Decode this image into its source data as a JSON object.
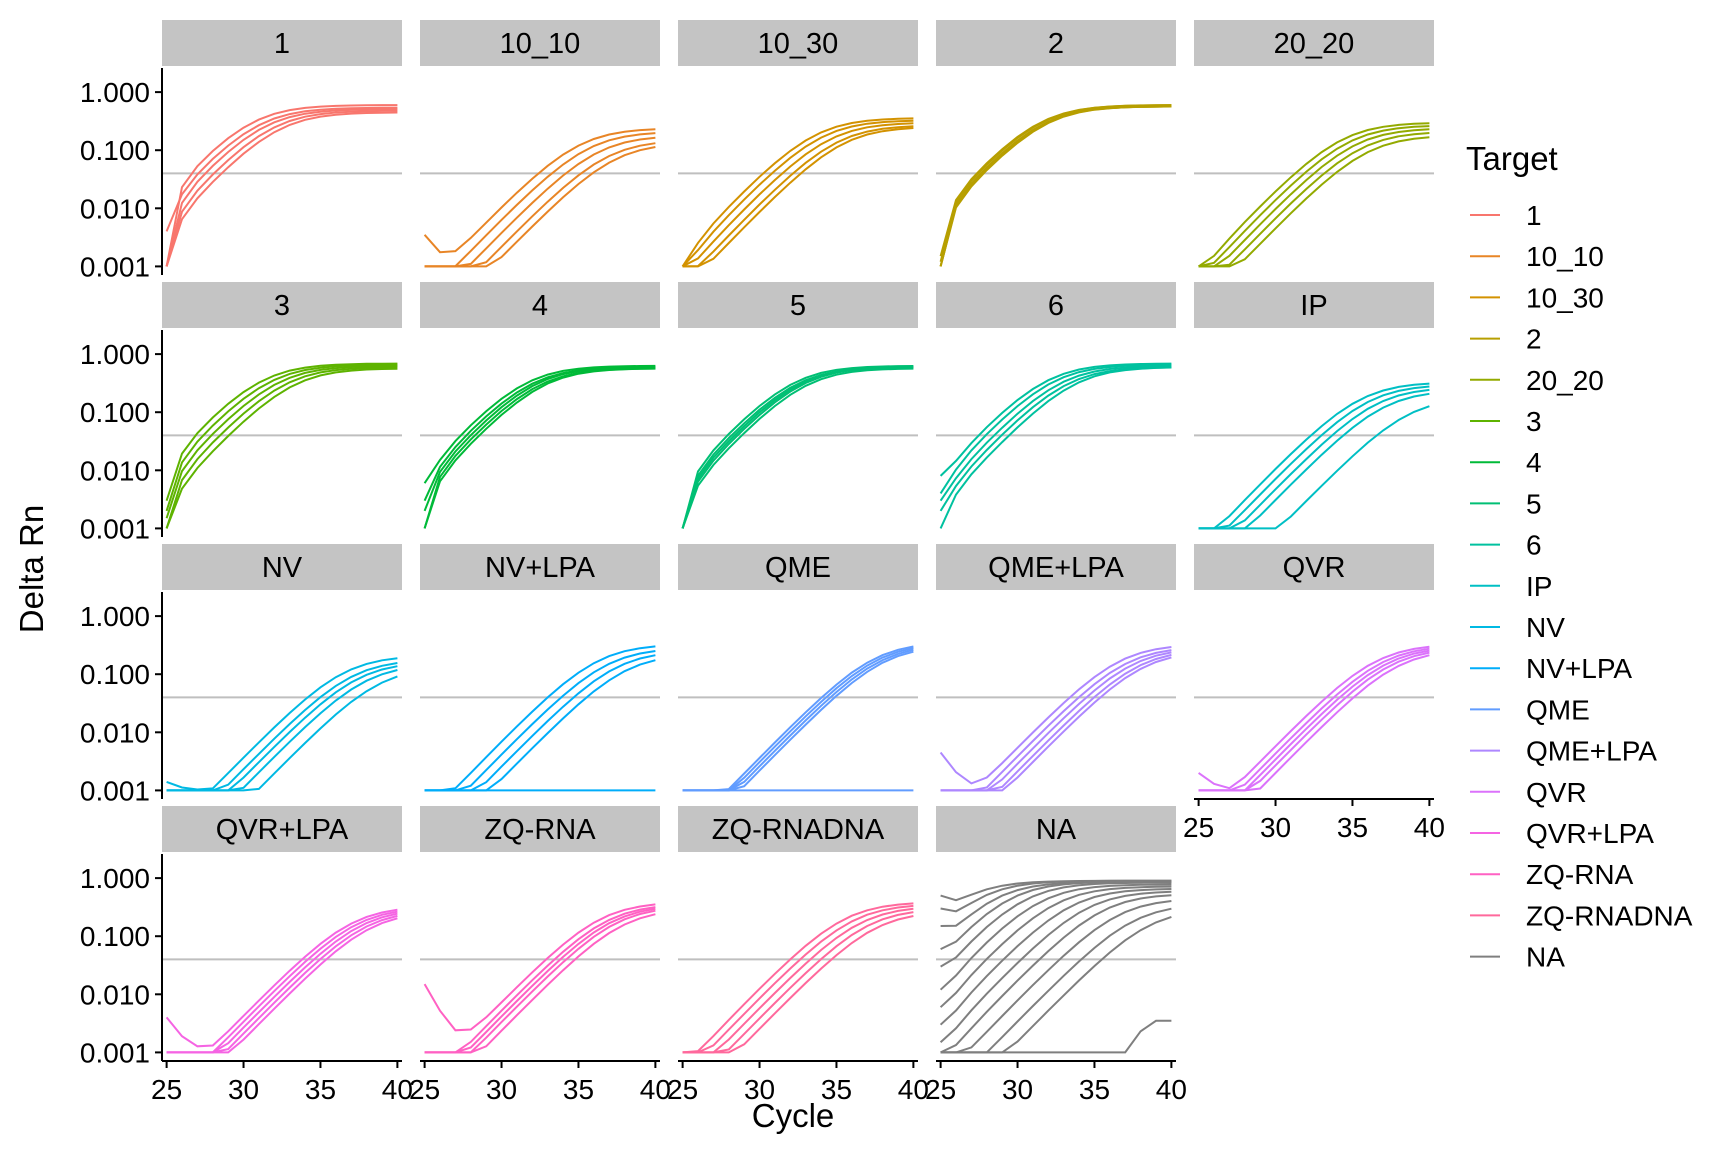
{
  "chart_data": {
    "type": "line",
    "xlabel": "Cycle",
    "ylabel": "Delta Rn",
    "x_ticks": [
      25,
      30,
      35,
      40
    ],
    "x_tick_labels": [
      "25",
      "30",
      "35",
      "40"
    ],
    "y_ticks": [
      0.001,
      0.01,
      0.1,
      1.0
    ],
    "y_tick_labels": [
      "0.001",
      "0.010",
      "0.100",
      "1.000"
    ],
    "y_scale": "log10",
    "xlim": [
      24.7,
      40.3
    ],
    "ylim": [
      0.00077,
      2.6
    ],
    "threshold": 0.04,
    "threshold_color": "#bfbfbf",
    "strip_color": "#c4c4c4",
    "grid": false,
    "legend_title": "Target",
    "legend_position": "right",
    "panels": [
      {
        "name": "1",
        "color": "#F8766D",
        "curves": [
          {
            "midpoint": 30.6,
            "plateau": 2.0,
            "y25": 0.001
          },
          {
            "midpoint": 31.0,
            "plateau": 1.8,
            "y25": 0.004
          },
          {
            "midpoint": 31.4,
            "plateau": 1.7,
            "y25": 0.001
          },
          {
            "midpoint": 31.9,
            "plateau": 1.6,
            "y25": 0.001
          },
          {
            "midpoint": 32.3,
            "plateau": 1.5,
            "y25": 0.001
          }
        ]
      },
      {
        "name": "10_10",
        "color": "#E88526",
        "curves": [
          {
            "midpoint": 35.0,
            "plateau": 0.8,
            "y25": 0.0035
          },
          {
            "midpoint": 35.6,
            "plateau": 0.7,
            "y25": 0.001
          },
          {
            "midpoint": 36.2,
            "plateau": 0.6,
            "y25": 0.001
          },
          {
            "midpoint": 36.8,
            "plateau": 0.5,
            "y25": 0.001
          },
          {
            "midpoint": 37.3,
            "plateau": 0.45,
            "y25": 0.001
          }
        ]
      },
      {
        "name": "10_30",
        "color": "#D39200",
        "curves": [
          {
            "midpoint": 33.6,
            "plateau": 1.2,
            "y25": 0.001
          },
          {
            "midpoint": 34.0,
            "plateau": 1.1,
            "y25": 0.001
          },
          {
            "midpoint": 34.5,
            "plateau": 1.0,
            "y25": 0.001
          },
          {
            "midpoint": 35.0,
            "plateau": 0.9,
            "y25": 0.001
          },
          {
            "midpoint": 35.4,
            "plateau": 0.85,
            "y25": 0.001
          }
        ]
      },
      {
        "name": "2",
        "color": "#B79F00",
        "curves": [
          {
            "midpoint": 31.5,
            "plateau": 2.0,
            "y25": 0.0015
          },
          {
            "midpoint": 31.6,
            "plateau": 2.0,
            "y25": 0.0012
          },
          {
            "midpoint": 31.7,
            "plateau": 1.9,
            "y25": 0.001
          },
          {
            "midpoint": 31.8,
            "plateau": 1.9,
            "y25": 0.001
          },
          {
            "midpoint": 31.9,
            "plateau": 1.9,
            "y25": 0.001
          }
        ]
      },
      {
        "name": "20_20",
        "color": "#93AA00",
        "curves": [
          {
            "midpoint": 34.3,
            "plateau": 1.0,
            "y25": 0.001
          },
          {
            "midpoint": 34.7,
            "plateau": 0.9,
            "y25": 0.001
          },
          {
            "midpoint": 35.1,
            "plateau": 0.8,
            "y25": 0.001
          },
          {
            "midpoint": 35.5,
            "plateau": 0.7,
            "y25": 0.001
          },
          {
            "midpoint": 35.9,
            "plateau": 0.6,
            "y25": 0.001
          }
        ]
      },
      {
        "name": "3",
        "color": "#5EB300",
        "curves": [
          {
            "midpoint": 31.2,
            "plateau": 2.3,
            "y25": 0.003
          },
          {
            "midpoint": 31.7,
            "plateau": 2.2,
            "y25": 0.002
          },
          {
            "midpoint": 32.2,
            "plateau": 2.1,
            "y25": 0.0015
          },
          {
            "midpoint": 32.7,
            "plateau": 2.0,
            "y25": 0.001
          },
          {
            "midpoint": 33.2,
            "plateau": 1.9,
            "y25": 0.001
          }
        ]
      },
      {
        "name": "4",
        "color": "#00BA38",
        "curves": [
          {
            "midpoint": 31.6,
            "plateau": 2.1,
            "y25": 0.006
          },
          {
            "midpoint": 31.9,
            "plateau": 2.0,
            "y25": 0.003
          },
          {
            "midpoint": 32.2,
            "plateau": 2.0,
            "y25": 0.002
          },
          {
            "midpoint": 32.4,
            "plateau": 1.9,
            "y25": 0.001
          },
          {
            "midpoint": 32.7,
            "plateau": 1.9,
            "y25": 0.001
          }
        ]
      },
      {
        "name": "5",
        "color": "#00BF74",
        "curves": [
          {
            "midpoint": 32.2,
            "plateau": 2.1,
            "y25": 0.001
          },
          {
            "midpoint": 32.4,
            "plateau": 2.0,
            "y25": 0.001
          },
          {
            "midpoint": 32.6,
            "plateau": 2.0,
            "y25": 0.001
          },
          {
            "midpoint": 32.8,
            "plateau": 2.0,
            "y25": 0.001
          },
          {
            "midpoint": 33.0,
            "plateau": 1.9,
            "y25": 0.001
          }
        ]
      },
      {
        "name": "6",
        "color": "#00C19F",
        "curves": [
          {
            "midpoint": 31.9,
            "plateau": 2.3,
            "y25": 0.008
          },
          {
            "midpoint": 32.3,
            "plateau": 2.2,
            "y25": 0.004
          },
          {
            "midpoint": 32.8,
            "plateau": 2.1,
            "y25": 0.003
          },
          {
            "midpoint": 33.2,
            "plateau": 2.0,
            "y25": 0.002
          },
          {
            "midpoint": 33.7,
            "plateau": 2.0,
            "y25": 0.001
          }
        ]
      },
      {
        "name": "IP",
        "color": "#00BFC4",
        "curves": [
          {
            "midpoint": 35.5,
            "plateau": 1.1,
            "y25": 0.001
          },
          {
            "midpoint": 36.0,
            "plateau": 1.0,
            "y25": 0.001
          },
          {
            "midpoint": 36.5,
            "plateau": 0.9,
            "y25": 0.001
          },
          {
            "midpoint": 37.0,
            "plateau": 0.8,
            "y25": 0.001
          },
          {
            "midpoint": 38.6,
            "plateau": 0.6,
            "y25": 0.001
          }
        ]
      },
      {
        "name": "NV",
        "color": "#00B9E3",
        "curves": [
          {
            "midpoint": 36.5,
            "plateau": 0.7,
            "y25": 0.0014
          },
          {
            "midpoint": 37.0,
            "plateau": 0.6,
            "y25": 0.001
          },
          {
            "midpoint": 37.4,
            "plateau": 0.55,
            "y25": 0.001
          },
          {
            "midpoint": 37.9,
            "plateau": 0.5,
            "y25": 0.001
          },
          {
            "midpoint": 38.8,
            "plateau": 0.45,
            "y25": 0.001
          }
        ]
      },
      {
        "name": "NV+LPA",
        "color": "#00ADFA",
        "curves": [
          {
            "midpoint": 36.2,
            "plateau": 1.1,
            "y25": 0.001
          },
          {
            "midpoint": 36.8,
            "plateau": 0.95,
            "y25": 0.001
          },
          {
            "midpoint": 37.4,
            "plateau": 0.85,
            "y25": 0.001
          },
          {
            "midpoint": 38.0,
            "plateau": 0.75,
            "y25": 0.001
          },
          {
            "midpoint": 40,
            "plateau": 0.0012,
            "y25": 0.001,
            "flat": true
          }
        ]
      },
      {
        "name": "QME",
        "color": "#619CFF",
        "curves": [
          {
            "midpoint": 37.4,
            "plateau": 1.2,
            "y25": 0.001
          },
          {
            "midpoint": 37.6,
            "plateau": 1.15,
            "y25": 0.001
          },
          {
            "midpoint": 37.8,
            "plateau": 1.1,
            "y25": 0.001
          },
          {
            "midpoint": 38.0,
            "plateau": 1.05,
            "y25": 0.001
          },
          {
            "midpoint": 40,
            "plateau": 0.001,
            "y25": 0.001,
            "flat": true
          }
        ]
      },
      {
        "name": "QME+LPA",
        "color": "#AE87FF",
        "curves": [
          {
            "midpoint": 36.6,
            "plateau": 1.1,
            "y25": 0.0045
          },
          {
            "midpoint": 37.0,
            "plateau": 1.0,
            "y25": 0.001
          },
          {
            "midpoint": 37.4,
            "plateau": 0.95,
            "y25": 0.001
          },
          {
            "midpoint": 37.8,
            "plateau": 0.9,
            "y25": 0.001
          },
          {
            "midpoint": 38.1,
            "plateau": 0.85,
            "y25": 0.001
          }
        ]
      },
      {
        "name": "QVR",
        "color": "#DB72FB",
        "curves": [
          {
            "midpoint": 36.5,
            "plateau": 1.1,
            "y25": 0.002
          },
          {
            "midpoint": 36.9,
            "plateau": 1.05,
            "y25": 0.001
          },
          {
            "midpoint": 37.2,
            "plateau": 1.0,
            "y25": 0.001
          },
          {
            "midpoint": 37.5,
            "plateau": 0.95,
            "y25": 0.001
          },
          {
            "midpoint": 37.9,
            "plateau": 0.9,
            "y25": 0.001
          }
        ]
      },
      {
        "name": "QVR+LPA",
        "color": "#F564E3",
        "curves": [
          {
            "midpoint": 37.0,
            "plateau": 1.1,
            "y25": 0.004
          },
          {
            "midpoint": 37.3,
            "plateau": 1.05,
            "y25": 0.001
          },
          {
            "midpoint": 37.6,
            "plateau": 1.0,
            "y25": 0.001
          },
          {
            "midpoint": 37.9,
            "plateau": 0.95,
            "y25": 0.001
          },
          {
            "midpoint": 38.2,
            "plateau": 0.9,
            "y25": 0.001
          }
        ]
      },
      {
        "name": "ZQ-RNA",
        "color": "#FF61C3",
        "curves": [
          {
            "midpoint": 36.4,
            "plateau": 1.3,
            "y25": 0.015
          },
          {
            "midpoint": 36.8,
            "plateau": 1.2,
            "y25": 0.001
          },
          {
            "midpoint": 37.1,
            "plateau": 1.15,
            "y25": 0.001
          },
          {
            "midpoint": 37.4,
            "plateau": 1.1,
            "y25": 0.001
          },
          {
            "midpoint": 37.8,
            "plateau": 1.0,
            "y25": 0.001
          }
        ]
      },
      {
        "name": "ZQ-RNADNA",
        "color": "#FF699C",
        "curves": [
          {
            "midpoint": 35.5,
            "plateau": 1.3,
            "y25": 0.001
          },
          {
            "midpoint": 36.0,
            "plateau": 1.2,
            "y25": 0.001
          },
          {
            "midpoint": 36.5,
            "plateau": 1.1,
            "y25": 0.001
          },
          {
            "midpoint": 37.0,
            "plateau": 1.0,
            "y25": 0.001
          },
          {
            "midpoint": 37.5,
            "plateau": 0.9,
            "y25": 0.001
          }
        ]
      },
      {
        "name": "NA",
        "color": "#7F7F7F",
        "curves": [
          {
            "midpoint": 26.5,
            "plateau": 3.0,
            "y25": 0.5
          },
          {
            "midpoint": 27.5,
            "plateau": 3.0,
            "y25": 0.3
          },
          {
            "midpoint": 28.5,
            "plateau": 2.9,
            "y25": 0.15
          },
          {
            "midpoint": 29.5,
            "plateau": 2.9,
            "y25": 0.06
          },
          {
            "midpoint": 30.5,
            "plateau": 2.8,
            "y25": 0.03
          },
          {
            "midpoint": 31.5,
            "plateau": 2.6,
            "y25": 0.012
          },
          {
            "midpoint": 32.5,
            "plateau": 2.4,
            "y25": 0.006
          },
          {
            "midpoint": 33.5,
            "plateau": 2.2,
            "y25": 0.003
          },
          {
            "midpoint": 34.5,
            "plateau": 2.0,
            "y25": 0.0015
          },
          {
            "midpoint": 35.5,
            "plateau": 1.8,
            "y25": 0.001
          },
          {
            "midpoint": 36.5,
            "plateau": 1.5,
            "y25": 0.001
          },
          {
            "midpoint": 37.5,
            "plateau": 1.2,
            "y25": 0.001
          },
          {
            "midpoint": 38.5,
            "plateau": 1.0,
            "y25": 0.001
          },
          {
            "midpoint": 40,
            "plateau": 0.0035,
            "y25": 0.001,
            "flat": true,
            "late_rise": true
          }
        ]
      }
    ]
  }
}
